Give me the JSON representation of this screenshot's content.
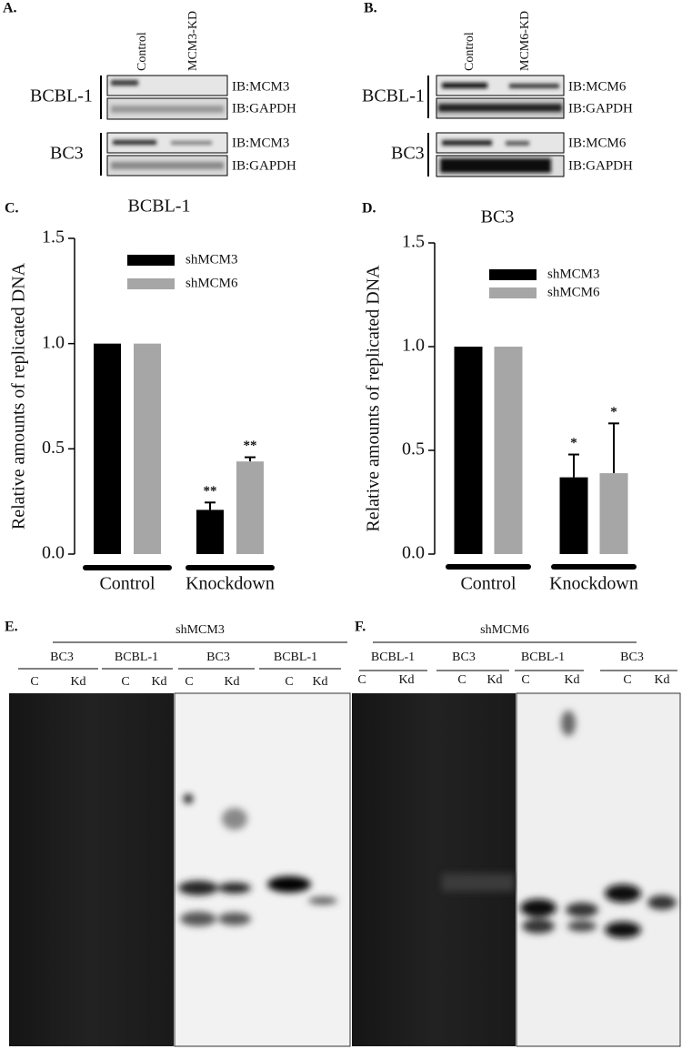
{
  "panels": {
    "a": {
      "label": "A.",
      "columns": [
        "Control",
        "MCM3-KD"
      ],
      "rows": [
        {
          "cell_line": "BCBL-1",
          "blots": [
            "IB:MCM3",
            "IB:GAPDH"
          ]
        },
        {
          "cell_line": "BC3",
          "blots": [
            "IB:MCM3",
            "IB:GAPDH"
          ]
        }
      ]
    },
    "b": {
      "label": "B.",
      "columns": [
        "Control",
        "MCM6-KD"
      ],
      "rows": [
        {
          "cell_line": "BCBL-1",
          "blots": [
            "IB:MCM6",
            "IB:GAPDH"
          ]
        },
        {
          "cell_line": "BC3",
          "blots": [
            "IB:MCM6",
            "IB:GAPDH"
          ]
        }
      ]
    },
    "e": {
      "label": "E.",
      "construct": "shMCM3",
      "groups": [
        "BC3",
        "BCBL-1",
        "BC3",
        "BCBL-1"
      ],
      "lanes": [
        "C",
        "Kd"
      ]
    },
    "f": {
      "label": "F.",
      "construct": "shMCM6",
      "groups": [
        "BCBL-1",
        "BC3",
        "BCBL-1",
        "BC3"
      ],
      "lanes": [
        "C",
        "Kd"
      ]
    }
  },
  "chart_data": [
    {
      "type": "bar",
      "panel_label": "C.",
      "title": "BCBL-1",
      "y_label": "Relative amounts of replicated DNA",
      "categories": [
        "Control",
        "Knockdown"
      ],
      "series": [
        {
          "name": "shMCM3",
          "color": "#000000",
          "values": [
            1.0,
            0.21
          ],
          "errors": [
            null,
            0.035
          ],
          "significance": [
            null,
            "**"
          ]
        },
        {
          "name": "shMCM6",
          "color": "#a6a6a6",
          "values": [
            1.0,
            0.44
          ],
          "errors": [
            null,
            0.02
          ],
          "significance": [
            null,
            "**"
          ]
        }
      ],
      "ylim": [
        0,
        1.5
      ],
      "yticks": [
        {
          "value": 0,
          "label": "0.0"
        },
        {
          "value": 0.5,
          "label": "0.5"
        },
        {
          "value": 1,
          "label": "1.0"
        },
        {
          "value": 1.5,
          "label": "1.5"
        }
      ]
    },
    {
      "type": "bar",
      "panel_label": "D.",
      "title": "BC3",
      "y_label": "Relative amounts of replicated DNA",
      "categories": [
        "Control",
        "Knockdown"
      ],
      "series": [
        {
          "name": "shMCM3",
          "color": "#000000",
          "values": [
            1.0,
            0.37
          ],
          "errors": [
            null,
            0.11
          ],
          "significance": [
            null,
            "*"
          ]
        },
        {
          "name": "shMCM6",
          "color": "#a6a6a6",
          "values": [
            1.0,
            0.39
          ],
          "errors": [
            null,
            0.24
          ],
          "significance": [
            null,
            "*"
          ]
        }
      ],
      "ylim": [
        0,
        1.5
      ],
      "yticks": [
        {
          "value": 0,
          "label": "0.0"
        },
        {
          "value": 0.5,
          "label": "0.5"
        },
        {
          "value": 1,
          "label": "1.0"
        },
        {
          "value": 1.5,
          "label": "1.5"
        }
      ]
    }
  ]
}
